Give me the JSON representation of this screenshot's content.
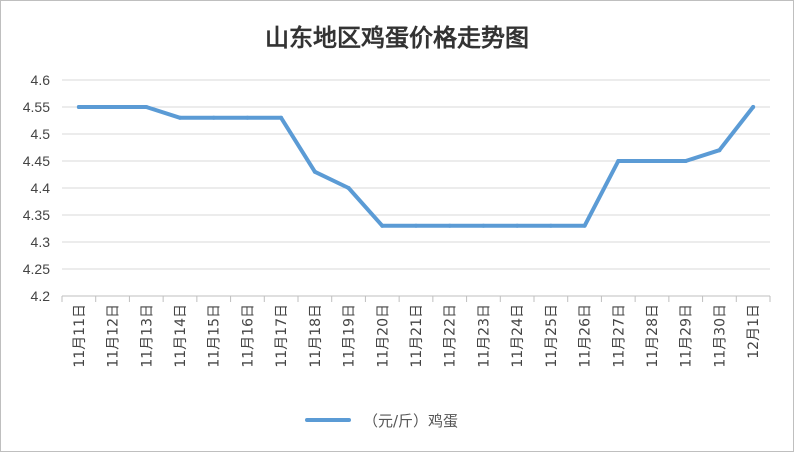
{
  "colors": {
    "series": "#5b9bd5",
    "grid": "#d9d9d9",
    "axis": "#bfbfbf",
    "text": "#444444"
  },
  "chart_data": {
    "type": "line",
    "title": "山东地区鸡蛋价格走势图",
    "xlabel": "",
    "ylabel": "",
    "categories": [
      "11月11日",
      "11月12日",
      "11月13日",
      "11月14日",
      "11月15日",
      "11月16日",
      "11月17日",
      "11月18日",
      "11月19日",
      "11月20日",
      "11月21日",
      "11月22日",
      "11月23日",
      "11月24日",
      "11月25日",
      "11月26日",
      "11月27日",
      "11月28日",
      "11月29日",
      "11月30日",
      "12月1日"
    ],
    "series": [
      {
        "name": "（元/斤）鸡蛋",
        "values": [
          4.55,
          4.55,
          4.55,
          4.53,
          4.53,
          4.53,
          4.53,
          4.43,
          4.4,
          4.33,
          4.33,
          4.33,
          4.33,
          4.33,
          4.33,
          4.33,
          4.45,
          4.45,
          4.45,
          4.47,
          4.55
        ]
      }
    ],
    "ylim": [
      4.2,
      4.6
    ],
    "yticks": [
      "4.2",
      "4.25",
      "4.3",
      "4.35",
      "4.4",
      "4.45",
      "4.5",
      "4.55",
      "4.6"
    ],
    "grid": true,
    "legend_position": "bottom"
  }
}
